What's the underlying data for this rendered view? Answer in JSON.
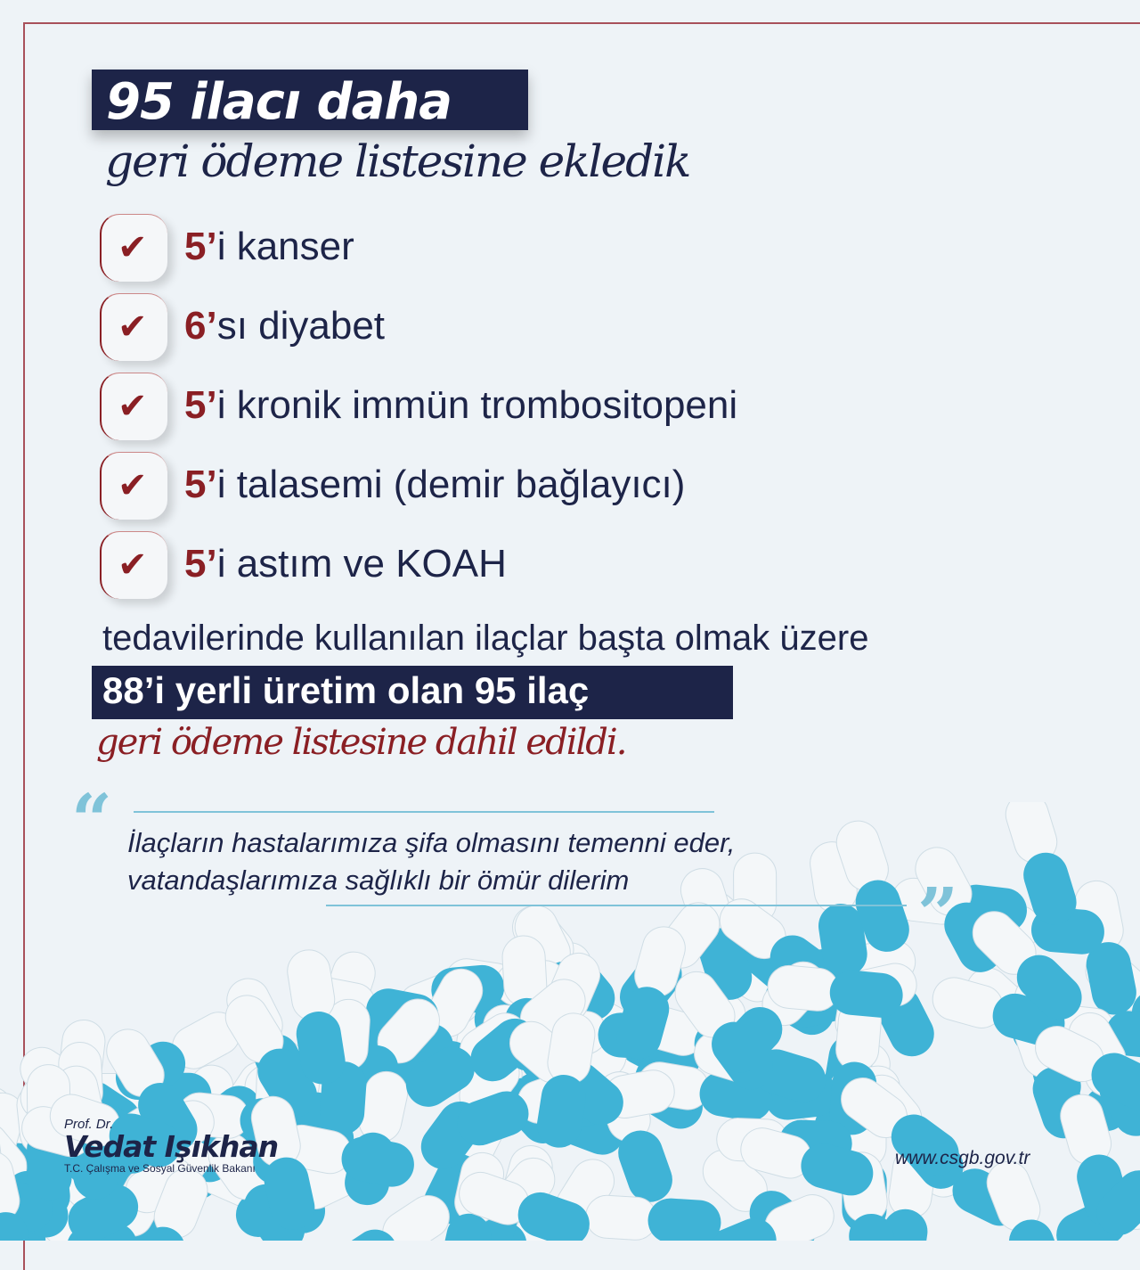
{
  "header": {
    "title": "95 ilacı daha",
    "subtitle": "geri ödeme listesine ekledik"
  },
  "items": [
    {
      "num": "5’",
      "rest": "i kanser"
    },
    {
      "num": "6’",
      "rest": "sı diyabet"
    },
    {
      "num": "5’",
      "rest": "i kronik immün trombositopeni"
    },
    {
      "num": "5’",
      "rest": "i talasemi (demir bağlayıcı)"
    },
    {
      "num": "5’",
      "rest": "i astım ve KOAH"
    }
  ],
  "body": {
    "line": "tedavilerinde kullanılan ilaçlar başta olmak üzere",
    "highlight": "88’i yerli üretim olan 95 ilaç",
    "closing": "geri ödeme listesine dahil edildi."
  },
  "quote": {
    "open": "“",
    "close": "”",
    "line1": "İlaçların hastalarımıza şifa olmasını temenni eder,",
    "line2": "vatandaşlarımıza sağlıklı bir ömür dilerim"
  },
  "signature": {
    "prefix": "Prof. Dr.",
    "name": "Vedat Işıkhan",
    "role": "T.C. Çalışma ve Sosyal Güvenlik Bakanı"
  },
  "website": "www.csgb.gov.tr",
  "colors": {
    "navy": "#1d2448",
    "red": "#8a1f24",
    "capsule_blue": "#3fb3d6",
    "capsule_white": "#f4f7f9"
  },
  "icons": {
    "check": "check-icon",
    "quote": "quote-icon"
  }
}
